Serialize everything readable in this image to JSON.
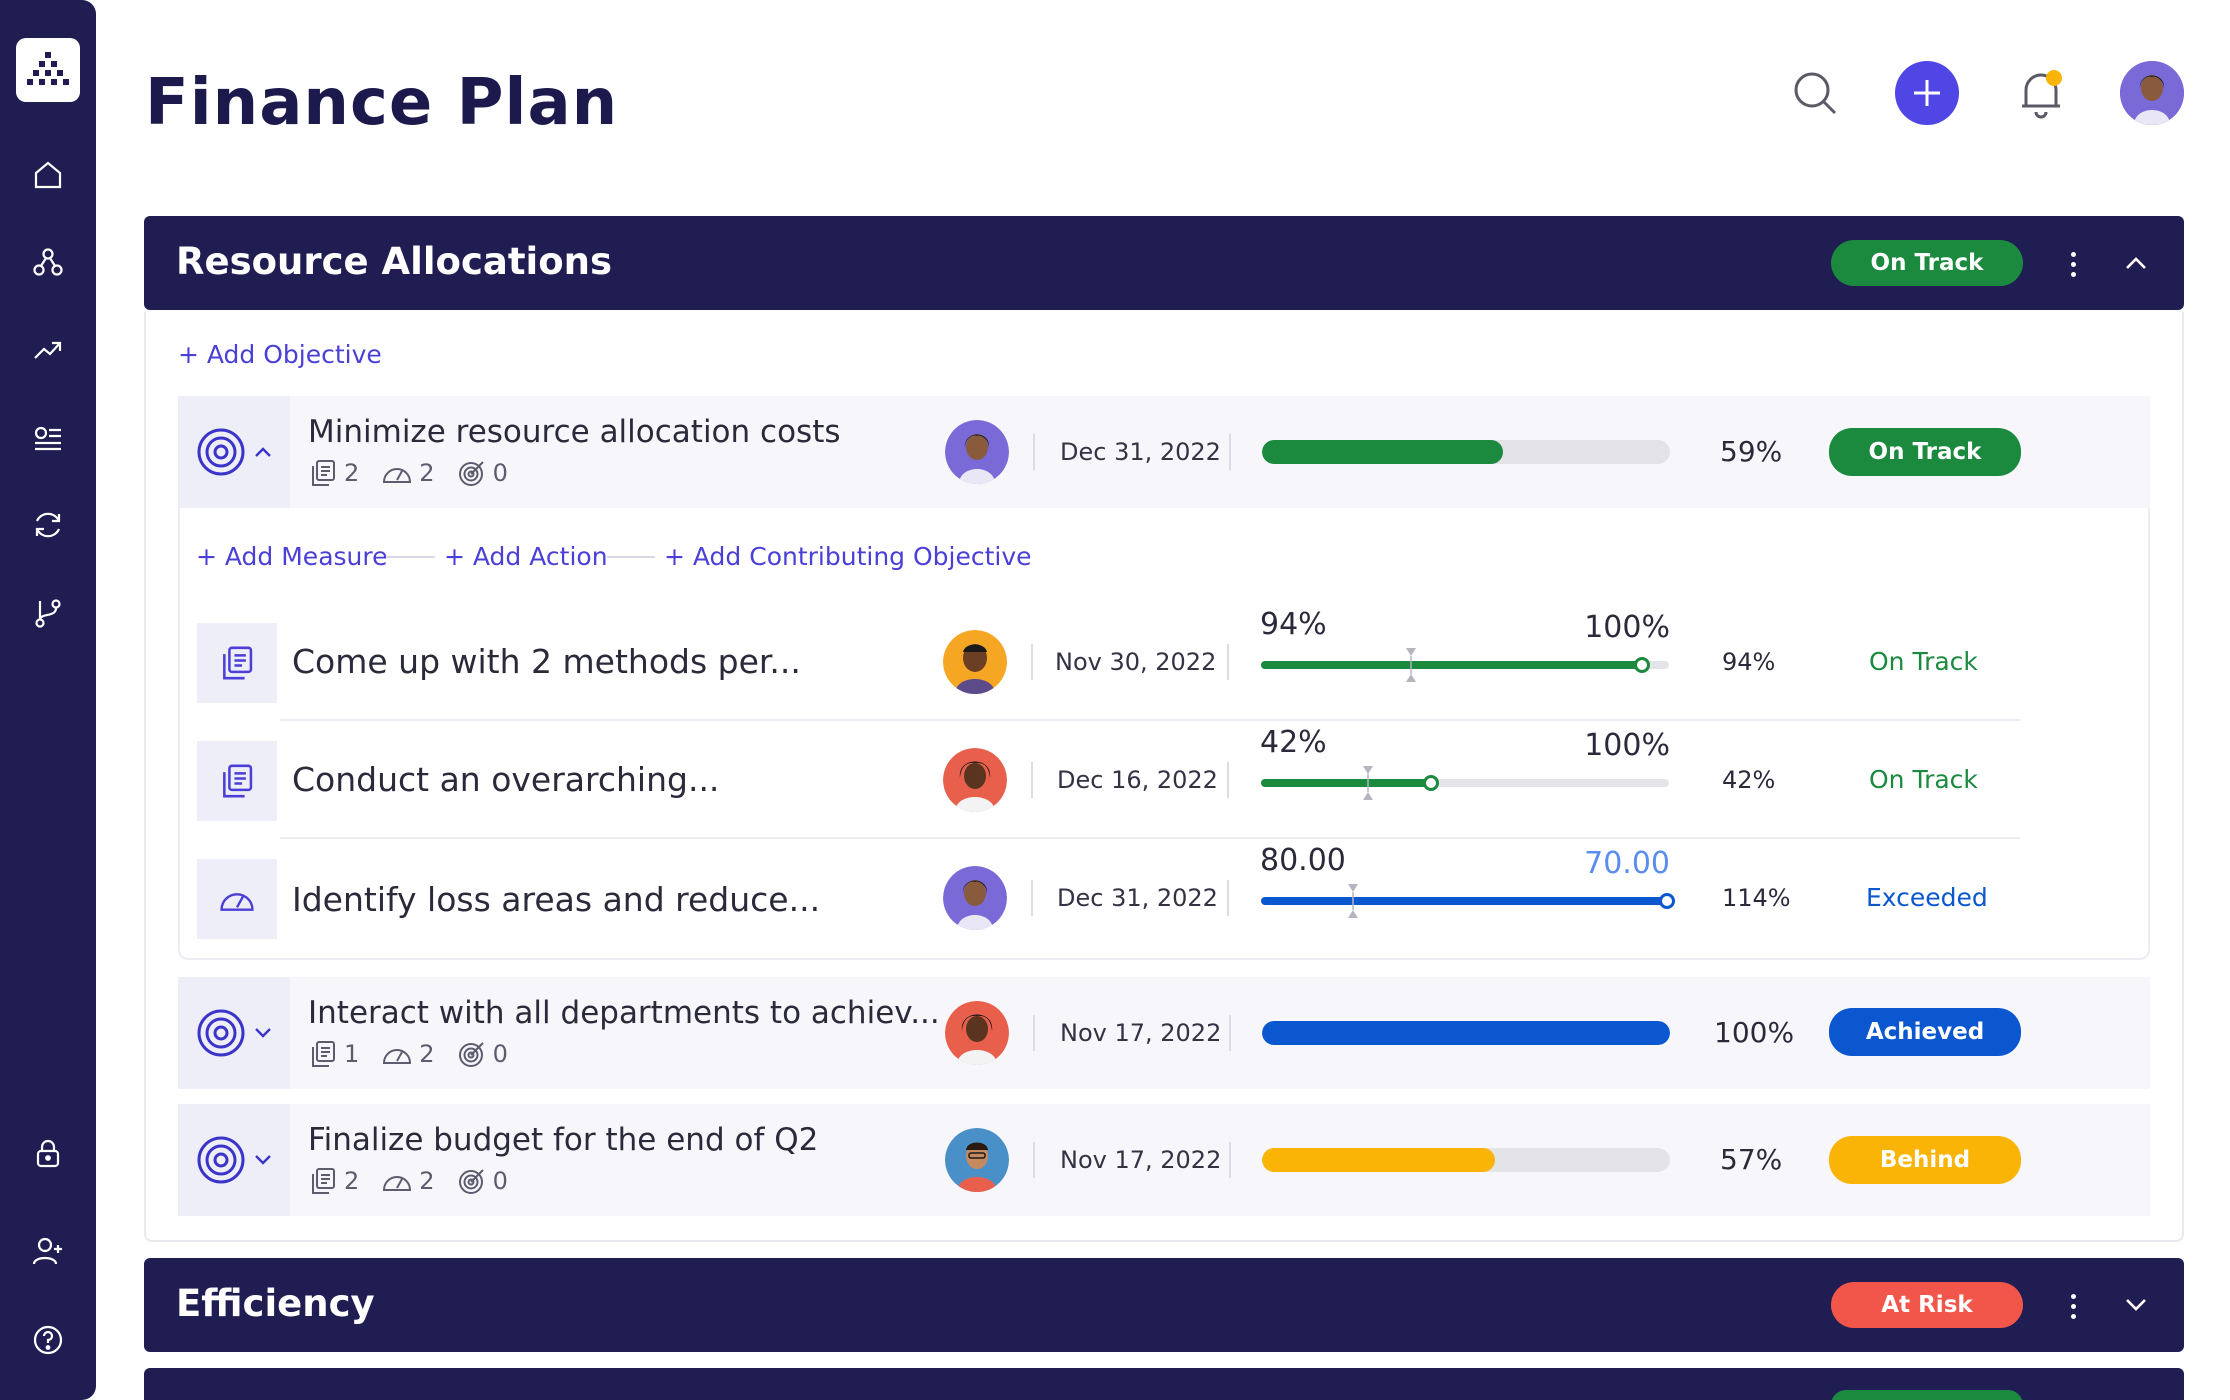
{
  "page": {
    "title": "Finance Plan"
  },
  "colors": {
    "navy": "#1f1d52",
    "accent": "#4f46e5",
    "green": "#1b8a3f",
    "blue": "#0b57d0",
    "amber": "#f9b406",
    "red": "#f2564a",
    "link": "#4a3fd6"
  },
  "sidebar": {
    "icons": [
      "home-icon",
      "hierarchy-icon",
      "trend-icon",
      "list-icon",
      "refresh-icon",
      "branch-icon",
      "lock-icon",
      "add-user-icon",
      "help-icon"
    ]
  },
  "header": {
    "icons": [
      "search-icon",
      "plus-icon",
      "bell-icon",
      "user-avatar"
    ]
  },
  "sections": [
    {
      "title": "Resource Allocations",
      "status": "On Track"
    },
    {
      "title": "Efficiency",
      "status": "At Risk"
    }
  ],
  "actions": {
    "add_objective": "+ Add Objective",
    "add_measure": "+ Add Measure",
    "add_action": "+ Add Action",
    "add_contributing": "+ Add Contributing Objective"
  },
  "objectives": [
    {
      "title": "Minimize resource allocation costs",
      "measures": "2",
      "actions": "2",
      "objectives": "0",
      "date": "Dec 31, 2022",
      "progress": 0.59,
      "pct": "59%",
      "status": "On Track"
    },
    {
      "title": "Interact with all departments to achiev...",
      "measures": "1",
      "actions": "2",
      "objectives": "0",
      "date": "Nov 17, 2022",
      "progress": 1.0,
      "pct": "100%",
      "status": "Achieved"
    },
    {
      "title": "Finalize budget for the end of Q2",
      "measures": "2",
      "actions": "2",
      "objectives": "0",
      "date": "Nov 17, 2022",
      "progress": 0.57,
      "pct": "57%",
      "status": "Behind"
    }
  ],
  "sub_items": [
    {
      "title": "Come up with 2 methods per...",
      "date": "Nov 30, 2022",
      "current": "94%",
      "target": "100%",
      "progress": 0.94,
      "pct": "94%",
      "status": "On Track"
    },
    {
      "title": "Conduct an overarching...",
      "date": "Dec 16, 2022",
      "current": "42%",
      "target": "100%",
      "progress": 0.42,
      "pct": "42%",
      "status": "On Track"
    },
    {
      "title": "Identify loss areas and reduce...",
      "date": "Dec 31, 2022",
      "current": "80.00",
      "target": "70.00",
      "progress": 1.0,
      "pct": "114%",
      "status": "Exceeded"
    }
  ]
}
